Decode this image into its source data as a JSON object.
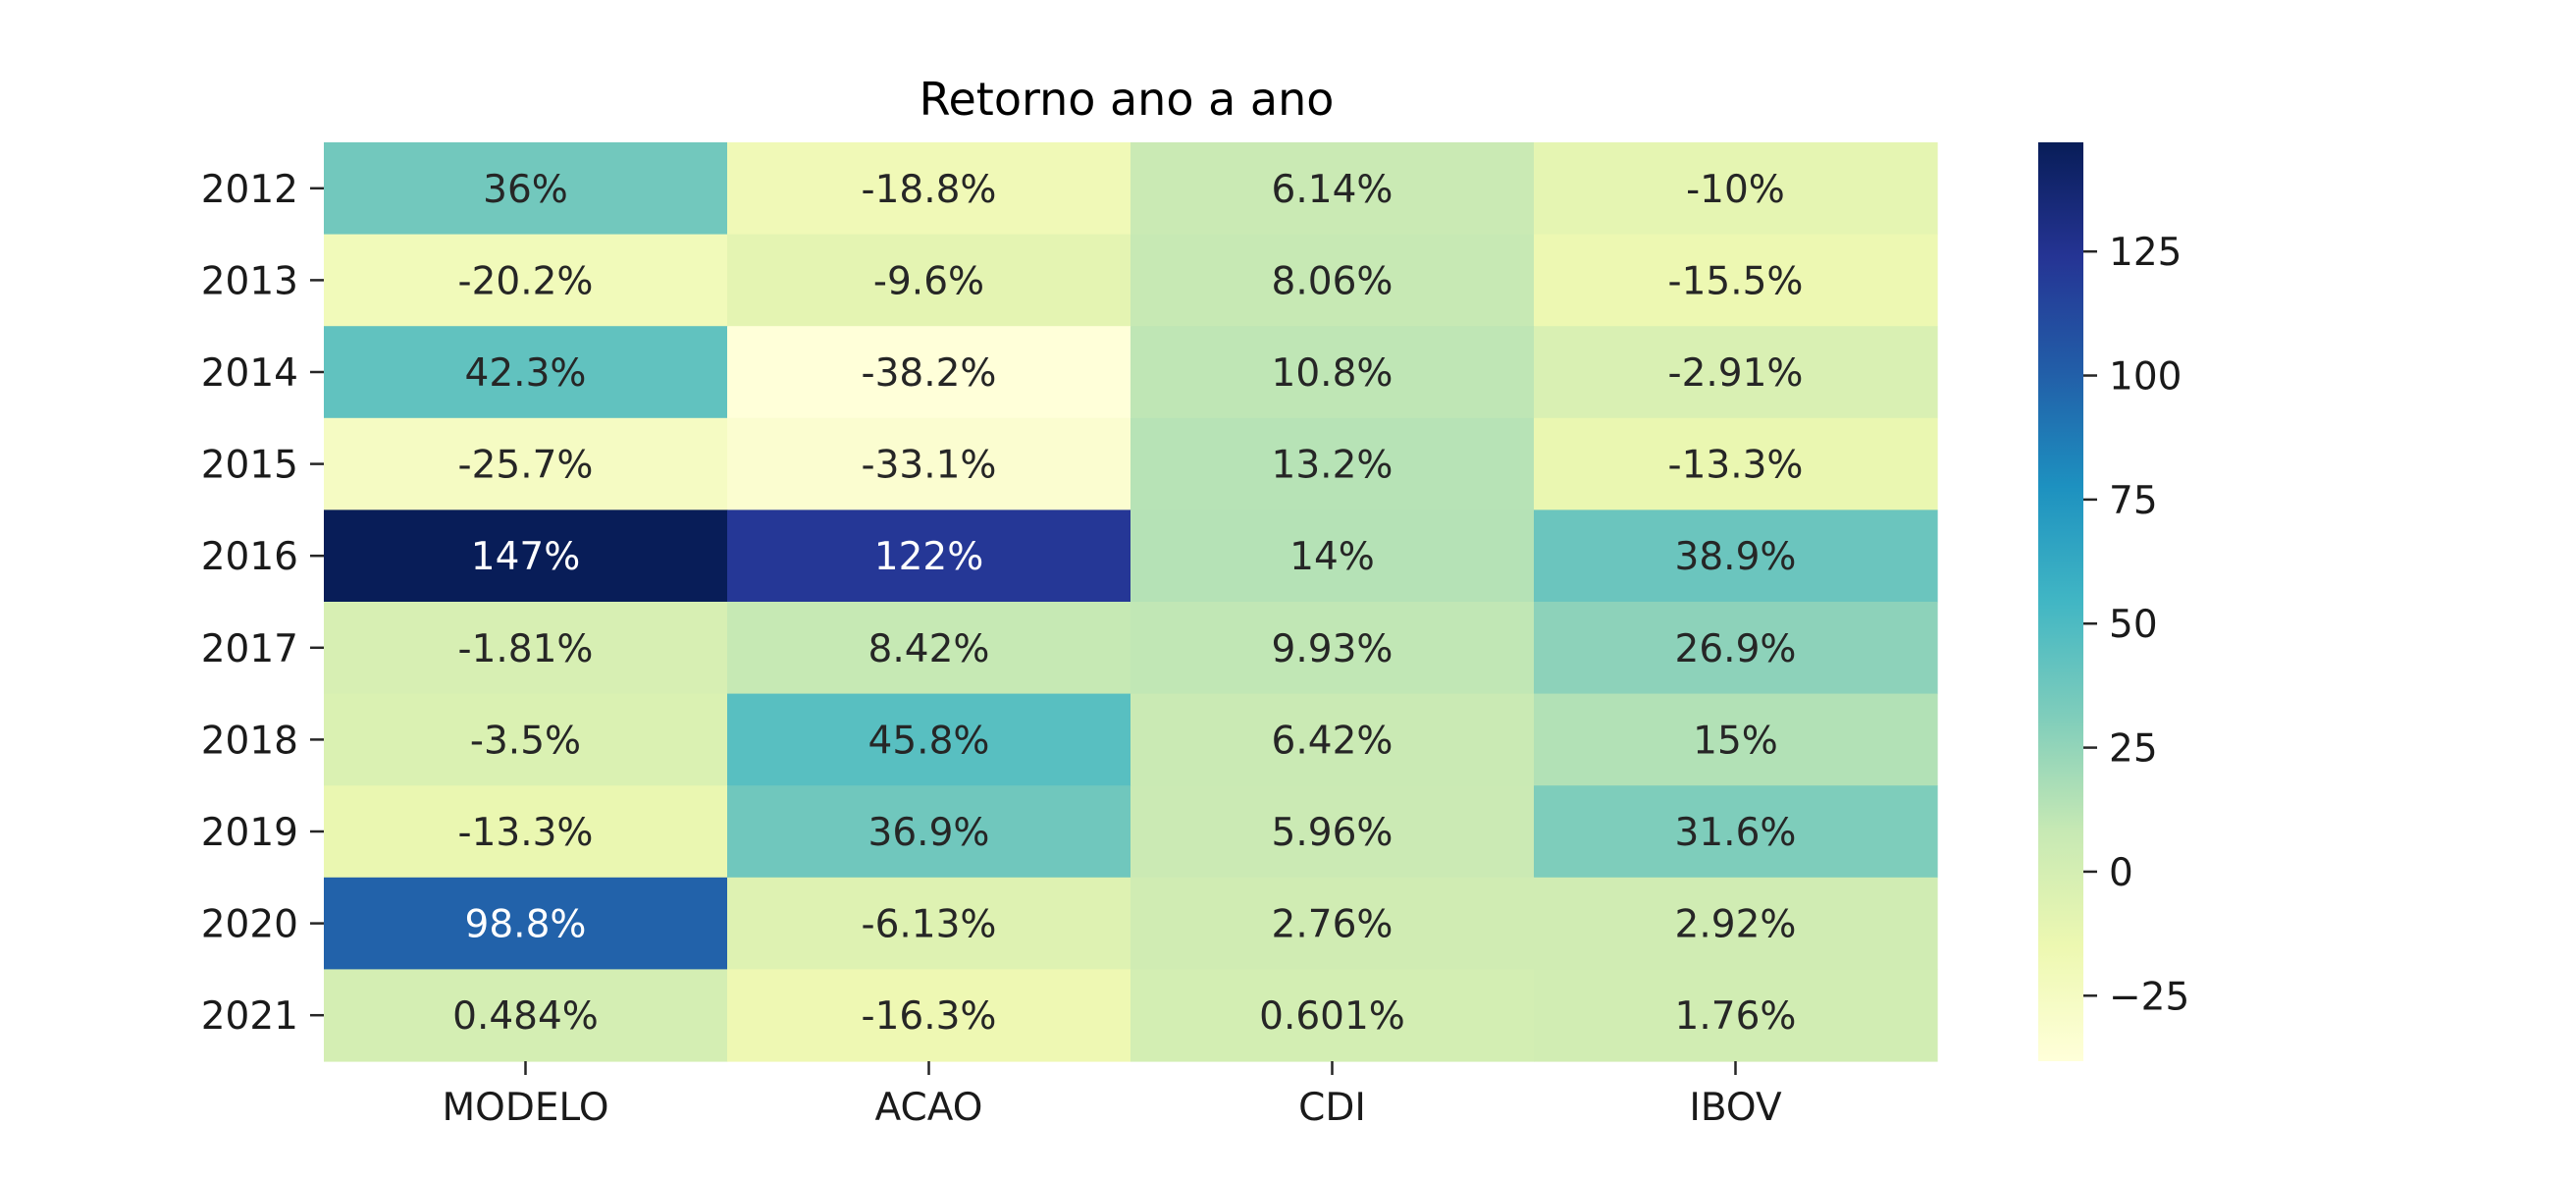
{
  "chart_data": {
    "type": "heatmap",
    "title": "Retorno ano a ano",
    "rows": [
      "2012",
      "2013",
      "2014",
      "2015",
      "2016",
      "2017",
      "2018",
      "2019",
      "2020",
      "2021"
    ],
    "columns": [
      "MODELO",
      "ACAO",
      "CDI",
      "IBOV"
    ],
    "values": [
      [
        36,
        -18.8,
        6.14,
        -10
      ],
      [
        -20.2,
        -9.6,
        8.06,
        -15.5
      ],
      [
        42.3,
        -38.2,
        10.8,
        -2.91
      ],
      [
        -25.7,
        -33.1,
        13.2,
        -13.3
      ],
      [
        147,
        122,
        14,
        38.9
      ],
      [
        -1.81,
        8.42,
        9.93,
        26.9
      ],
      [
        -3.5,
        45.8,
        6.42,
        15
      ],
      [
        -13.3,
        36.9,
        5.96,
        31.6
      ],
      [
        98.8,
        -6.13,
        2.76,
        2.92
      ],
      [
        0.484,
        -16.3,
        0.601,
        1.76
      ]
    ],
    "labels": [
      [
        "36%",
        "-18.8%",
        "6.14%",
        "-10%"
      ],
      [
        "-20.2%",
        "-9.6%",
        "8.06%",
        "-15.5%"
      ],
      [
        "42.3%",
        "-38.2%",
        "10.8%",
        "-2.91%"
      ],
      [
        "-25.7%",
        "-33.1%",
        "13.2%",
        "-13.3%"
      ],
      [
        "147%",
        "122%",
        "14%",
        "38.9%"
      ],
      [
        "-1.81%",
        "8.42%",
        "9.93%",
        "26.9%"
      ],
      [
        "-3.5%",
        "45.8%",
        "6.42%",
        "15%"
      ],
      [
        "-13.3%",
        "36.9%",
        "5.96%",
        "31.6%"
      ],
      [
        "98.8%",
        "-6.13%",
        "2.76%",
        "2.92%"
      ],
      [
        "0.484%",
        "-16.3%",
        "0.601%",
        "1.76%"
      ]
    ],
    "colormap": "YlGnBu",
    "color_range": [
      -38.2,
      147
    ],
    "colorbar": {
      "ticks": [
        -25,
        0,
        25,
        50,
        75,
        100,
        125
      ],
      "tick_labels": [
        "−25",
        "0",
        "25",
        "50",
        "75",
        "100",
        "125"
      ]
    },
    "colors": {
      "dark_text": "#262626",
      "light_text": "#ffffff"
    }
  }
}
